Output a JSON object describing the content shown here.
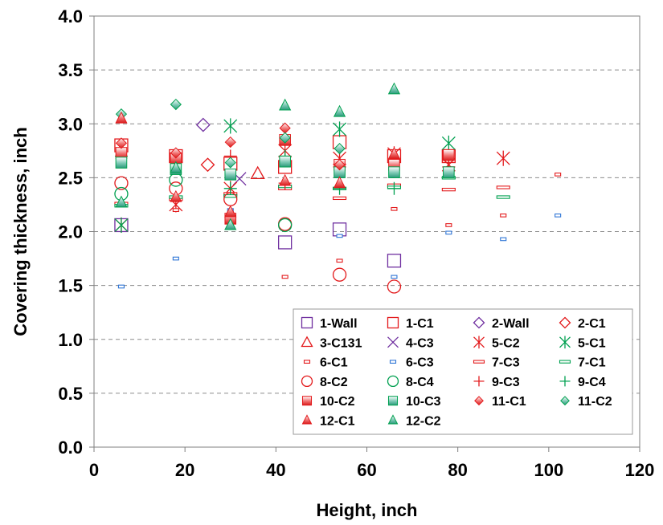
{
  "chart_data": {
    "type": "scatter",
    "xlabel": "Height, inch",
    "ylabel": "Covering thickness, inch",
    "xlim": [
      0,
      120
    ],
    "ylim": [
      0,
      4.0
    ],
    "x_ticks": [
      "0",
      "20",
      "40",
      "60",
      "80",
      "100",
      "120"
    ],
    "y_ticks": [
      "0.0",
      "0.5",
      "1.0",
      "1.5",
      "2.0",
      "2.5",
      "3.0",
      "3.5",
      "4.0"
    ],
    "grid": "horizontal dashed",
    "legend_position": "bottom-right",
    "colors": {
      "purple": "#7030a0",
      "red": "#e31a1c",
      "green": "#00a050",
      "blue": "#2e75d6"
    },
    "series": [
      {
        "name": "1-Wall",
        "marker": "square-open",
        "color": "#7030a0",
        "points": [
          [
            6,
            2.06
          ],
          [
            42,
            1.9
          ],
          [
            54,
            2.02
          ],
          [
            66,
            1.73
          ]
        ]
      },
      {
        "name": "1-C1",
        "marker": "square-open",
        "color": "#e31a1c",
        "points": [
          [
            6,
            2.8
          ],
          [
            18,
            2.7
          ],
          [
            30,
            2.63
          ],
          [
            42,
            2.6
          ],
          [
            54,
            2.83
          ],
          [
            66,
            2.7
          ],
          [
            78,
            2.7
          ]
        ]
      },
      {
        "name": "2-Wall",
        "marker": "diamond-open",
        "color": "#7030a0",
        "points": [
          [
            24,
            2.99
          ]
        ]
      },
      {
        "name": "2-C1",
        "marker": "diamond-open",
        "color": "#e31a1c",
        "points": [
          [
            25,
            2.62
          ]
        ]
      },
      {
        "name": "3-C131",
        "marker": "triangle-open",
        "color": "#e31a1c",
        "points": [
          [
            36,
            2.54
          ]
        ]
      },
      {
        "name": "4-C3",
        "marker": "x",
        "color": "#7030a0",
        "points": [
          [
            32,
            2.49
          ]
        ]
      },
      {
        "name": "5-C2",
        "marker": "star",
        "color": "#e31a1c",
        "points": [
          [
            6,
            2.06
          ],
          [
            18,
            2.25
          ],
          [
            30,
            2.4
          ],
          [
            42,
            2.75
          ],
          [
            54,
            2.68
          ],
          [
            66,
            2.72
          ],
          [
            78,
            2.62
          ],
          [
            90,
            2.68
          ]
        ]
      },
      {
        "name": "5-C1",
        "marker": "star",
        "color": "#00a050",
        "points": [
          [
            6,
            2.06
          ],
          [
            30,
            2.98
          ],
          [
            54,
            2.95
          ],
          [
            78,
            2.82
          ]
        ]
      },
      {
        "name": "6-C1",
        "marker": "small-rect",
        "color": "#e31a1c",
        "points": [
          [
            18,
            2.2
          ],
          [
            30,
            2.08
          ],
          [
            42,
            1.58
          ],
          [
            54,
            1.73
          ],
          [
            66,
            2.21
          ],
          [
            78,
            2.06
          ],
          [
            90,
            2.15
          ],
          [
            102,
            2.53
          ]
        ]
      },
      {
        "name": "6-C3",
        "marker": "small-rect",
        "color": "#2e75d6",
        "points": [
          [
            6,
            1.49
          ],
          [
            18,
            1.75
          ],
          [
            30,
            2.2
          ],
          [
            54,
            1.96
          ],
          [
            66,
            1.58
          ],
          [
            78,
            1.99
          ],
          [
            90,
            1.93
          ],
          [
            102,
            2.15
          ]
        ]
      },
      {
        "name": "7-C3",
        "marker": "dash",
        "color": "#e31a1c",
        "points": [
          [
            6,
            2.26
          ],
          [
            18,
            2.3
          ],
          [
            30,
            2.35
          ],
          [
            42,
            2.4
          ],
          [
            54,
            2.31
          ],
          [
            66,
            2.43
          ],
          [
            78,
            2.39
          ],
          [
            90,
            2.41
          ]
        ]
      },
      {
        "name": "7-C1",
        "marker": "dash",
        "color": "#00a050",
        "points": [
          [
            6,
            2.24
          ],
          [
            18,
            2.32
          ],
          [
            30,
            2.33
          ],
          [
            42,
            2.42
          ],
          [
            54,
            2.4
          ],
          [
            66,
            2.41
          ],
          [
            78,
            2.5
          ],
          [
            90,
            2.32
          ]
        ]
      },
      {
        "name": "8-C2",
        "marker": "circle-open",
        "color": "#e31a1c",
        "points": [
          [
            6,
            2.45
          ],
          [
            18,
            2.4
          ],
          [
            30,
            2.3
          ],
          [
            42,
            2.07
          ],
          [
            54,
            1.6
          ],
          [
            66,
            1.49
          ]
        ]
      },
      {
        "name": "8-C4",
        "marker": "circle-open",
        "color": "#00a050",
        "points": [
          [
            6,
            2.35
          ],
          [
            18,
            2.48
          ],
          [
            42,
            2.06
          ]
        ]
      },
      {
        "name": "9-C3",
        "marker": "plus",
        "color": "#e31a1c",
        "points": [
          [
            18,
            2.65
          ],
          [
            30,
            2.7
          ],
          [
            42,
            2.45
          ],
          [
            54,
            2.6
          ],
          [
            66,
            2.65
          ],
          [
            78,
            2.6
          ]
        ]
      },
      {
        "name": "9-C4",
        "marker": "plus",
        "color": "#00a050",
        "points": [
          [
            6,
            2.7
          ],
          [
            30,
            2.4
          ],
          [
            42,
            2.7
          ],
          [
            54,
            2.4
          ],
          [
            66,
            2.4
          ]
        ]
      },
      {
        "name": "10-C2",
        "marker": "square-filled",
        "color": "#e31a1c",
        "points": [
          [
            6,
            2.73
          ],
          [
            18,
            2.68
          ],
          [
            30,
            2.12
          ],
          [
            42,
            2.85
          ],
          [
            54,
            2.62
          ],
          [
            66,
            2.62
          ],
          [
            78,
            2.71
          ]
        ]
      },
      {
        "name": "10-C3",
        "marker": "square-filled",
        "color": "#00a050",
        "points": [
          [
            6,
            2.64
          ],
          [
            18,
            2.58
          ],
          [
            30,
            2.53
          ],
          [
            42,
            2.65
          ],
          [
            54,
            2.55
          ],
          [
            66,
            2.55
          ],
          [
            78,
            2.55
          ]
        ]
      },
      {
        "name": "11-C1",
        "marker": "diamond-filled",
        "color": "#e31a1c",
        "points": [
          [
            6,
            2.82
          ],
          [
            18,
            2.73
          ],
          [
            30,
            2.83
          ],
          [
            42,
            2.96
          ],
          [
            54,
            2.62
          ]
        ]
      },
      {
        "name": "11-C2",
        "marker": "diamond-filled",
        "color": "#00a050",
        "points": [
          [
            6,
            3.09
          ],
          [
            18,
            3.18
          ],
          [
            30,
            2.64
          ],
          [
            42,
            2.87
          ],
          [
            54,
            2.77
          ]
        ]
      },
      {
        "name": "12-C1",
        "marker": "triangle-filled",
        "color": "#e31a1c",
        "points": [
          [
            6,
            3.05
          ],
          [
            18,
            2.32
          ],
          [
            30,
            2.18
          ],
          [
            42,
            2.47
          ],
          [
            54,
            2.45
          ],
          [
            66,
            2.72
          ]
        ]
      },
      {
        "name": "12-C2",
        "marker": "triangle-filled",
        "color": "#00a050",
        "points": [
          [
            6,
            2.27
          ],
          [
            18,
            2.59
          ],
          [
            30,
            2.06
          ],
          [
            42,
            3.17
          ],
          [
            54,
            3.11
          ],
          [
            66,
            3.32
          ]
        ]
      }
    ]
  }
}
